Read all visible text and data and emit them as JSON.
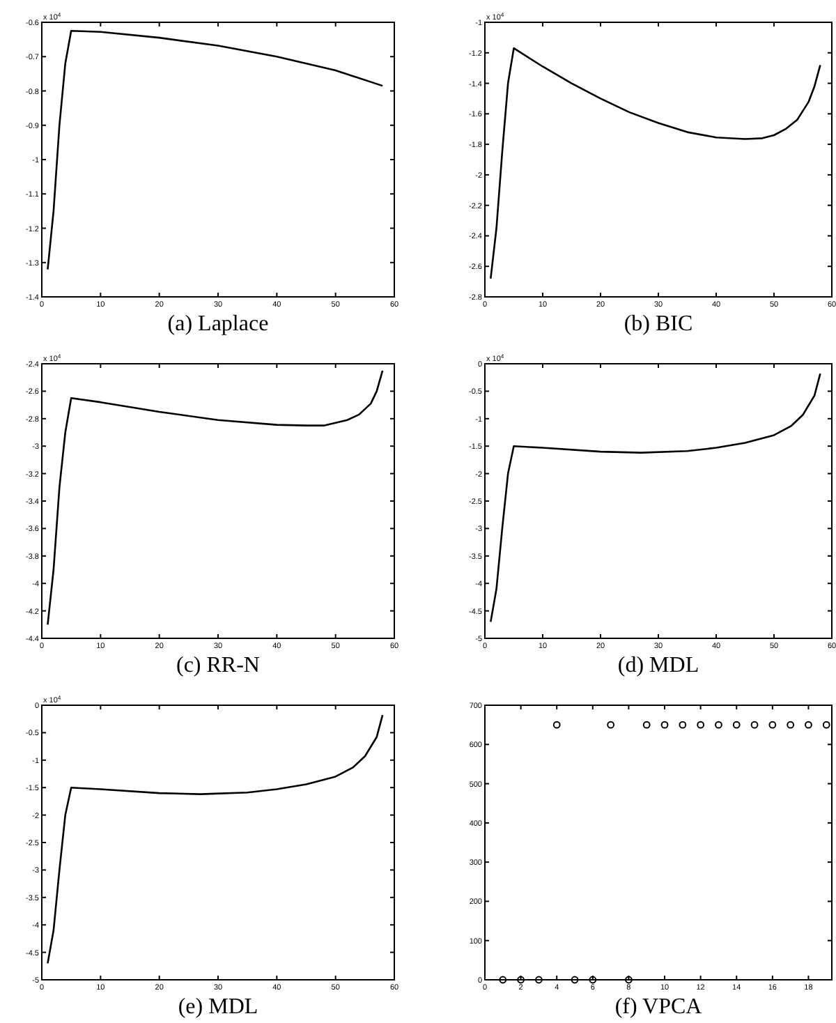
{
  "chart_data": [
    {
      "type": "line",
      "title": "(a) Laplace",
      "annotations": [
        "x 10$^{4}$"
      ],
      "color": "#000000",
      "xlim": [
        0,
        60
      ],
      "xticks": [
        0,
        10,
        20,
        30,
        40,
        50,
        60
      ],
      "ylim": [
        -1.4,
        -0.6
      ],
      "yticks": [
        -1.4,
        -1.3,
        -1.2,
        -1.1,
        -1,
        -0.9,
        -0.8,
        -0.7,
        -0.6
      ],
      "x": [
        1,
        2,
        3,
        4,
        5,
        10,
        20,
        30,
        40,
        50,
        58
      ],
      "values": [
        -1.32,
        -1.15,
        -0.9,
        -0.72,
        -0.625,
        -0.628,
        -0.645,
        -0.668,
        -0.7,
        -0.74,
        -0.785
      ]
    },
    {
      "type": "line",
      "title": "(b) BIC",
      "annotations": [
        "x 10$^{4}$"
      ],
      "color": "#000000",
      "xlim": [
        0,
        60
      ],
      "xticks": [
        0,
        10,
        20,
        30,
        40,
        50,
        60
      ],
      "ylim": [
        -2.8,
        -1
      ],
      "yticks": [
        -2.8,
        -2.6,
        -2.4,
        -2.2,
        -2,
        -1.8,
        -1.6,
        -1.4,
        -1.2,
        -1
      ],
      "x": [
        1,
        2,
        3,
        4,
        5,
        10,
        15,
        20,
        25,
        30,
        35,
        40,
        45,
        48,
        50,
        52,
        54,
        56,
        57,
        58
      ],
      "values": [
        -2.68,
        -2.35,
        -1.85,
        -1.4,
        -1.17,
        -1.29,
        -1.4,
        -1.5,
        -1.59,
        -1.66,
        -1.72,
        -1.755,
        -1.765,
        -1.76,
        -1.74,
        -1.7,
        -1.64,
        -1.52,
        -1.42,
        -1.28
      ]
    },
    {
      "type": "line",
      "title": "(c) RR-N",
      "annotations": [
        "x 10$^{4}$"
      ],
      "color": "#000000",
      "xlim": [
        0,
        60
      ],
      "xticks": [
        0,
        10,
        20,
        30,
        40,
        50,
        60
      ],
      "ylim": [
        -4.4,
        -2.4
      ],
      "yticks": [
        -4.4,
        -4.2,
        -4,
        -3.8,
        -3.6,
        -3.4,
        -3.2,
        -3,
        -2.8,
        -2.6,
        -2.4
      ],
      "x": [
        1,
        2,
        3,
        4,
        5,
        10,
        20,
        30,
        40,
        45,
        48,
        50,
        52,
        54,
        56,
        57,
        58
      ],
      "values": [
        -4.3,
        -3.9,
        -3.3,
        -2.9,
        -2.65,
        -2.68,
        -2.75,
        -2.81,
        -2.845,
        -2.85,
        -2.85,
        -2.83,
        -2.81,
        -2.77,
        -2.69,
        -2.6,
        -2.45
      ]
    },
    {
      "type": "line",
      "title": "(d) MDL",
      "annotations": [
        "x 10$^{4}$"
      ],
      "color": "#000000",
      "xlim": [
        0,
        60
      ],
      "xticks": [
        0,
        10,
        20,
        30,
        40,
        50,
        60
      ],
      "ylim": [
        -5,
        0
      ],
      "yticks": [
        -5,
        -4.5,
        -4,
        -3.5,
        -3,
        -2.5,
        -2,
        -1.5,
        -1,
        -0.5,
        0
      ],
      "x": [
        1,
        2,
        3,
        4,
        5,
        10,
        20,
        27,
        35,
        40,
        45,
        50,
        53,
        55,
        57,
        58
      ],
      "values": [
        -4.7,
        -4.1,
        -3.0,
        -2.0,
        -1.5,
        -1.53,
        -1.6,
        -1.62,
        -1.59,
        -1.53,
        -1.44,
        -1.3,
        -1.13,
        -0.93,
        -0.58,
        -0.18
      ]
    },
    {
      "type": "line",
      "title": "(e) MDL",
      "annotations": [
        "x 10$^{4}$"
      ],
      "color": "#000000",
      "xlim": [
        0,
        60
      ],
      "xticks": [
        0,
        10,
        20,
        30,
        40,
        50,
        60
      ],
      "ylim": [
        -5,
        0
      ],
      "yticks": [
        -5,
        -4.5,
        -4,
        -3.5,
        -3,
        -2.5,
        -2,
        -1.5,
        -1,
        -0.5,
        0
      ],
      "x": [
        1,
        2,
        3,
        4,
        5,
        10,
        20,
        27,
        35,
        40,
        45,
        50,
        53,
        55,
        57,
        58
      ],
      "values": [
        -4.7,
        -4.1,
        -3.0,
        -2.0,
        -1.5,
        -1.53,
        -1.6,
        -1.62,
        -1.59,
        -1.53,
        -1.44,
        -1.3,
        -1.13,
        -0.93,
        -0.58,
        -0.18
      ]
    },
    {
      "type": "scatter",
      "title": "(f) VPCA",
      "marker": "circle",
      "color": "#000000",
      "xlim": [
        0,
        19.3
      ],
      "xticks": [
        0,
        2,
        4,
        6,
        8,
        10,
        12,
        14,
        16,
        18
      ],
      "ylim": [
        0,
        700
      ],
      "yticks": [
        0,
        100,
        200,
        300,
        400,
        500,
        600,
        700
      ],
      "x": [
        1,
        2,
        3,
        4,
        5,
        6,
        7,
        8,
        9,
        10,
        11,
        12,
        13,
        14,
        15,
        16,
        17,
        18,
        19
      ],
      "values": [
        0,
        0,
        0,
        650,
        0,
        0,
        650,
        0,
        650,
        650,
        650,
        650,
        650,
        650,
        650,
        650,
        650,
        650,
        650
      ]
    }
  ]
}
